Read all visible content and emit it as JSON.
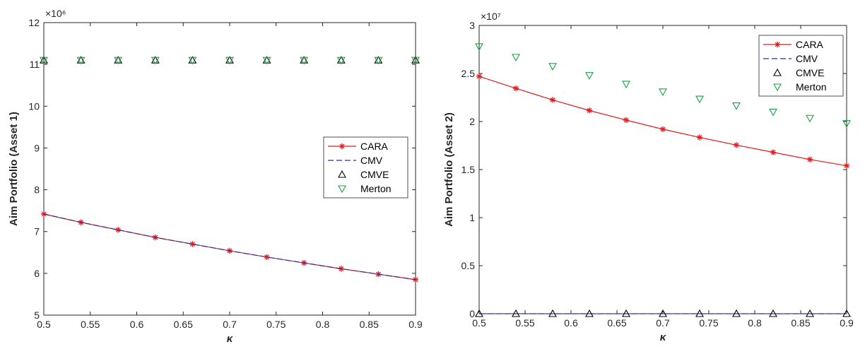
{
  "chart_data": [
    {
      "type": "line",
      "xlabel": "κ",
      "ylabel": "Aim Portfolio (Asset 1)",
      "exponent_label": "×10⁶",
      "xlim": [
        0.5,
        0.9
      ],
      "ylim": [
        5,
        12
      ],
      "xticks": [
        0.5,
        0.55,
        0.6,
        0.65,
        0.7,
        0.75,
        0.8,
        0.85,
        0.9
      ],
      "xtick_labels": [
        "0.5",
        "0.55",
        "0.6",
        "0.65",
        "0.7",
        "0.75",
        "0.8",
        "0.85",
        "0.9"
      ],
      "yticks": [
        5,
        6,
        7,
        8,
        9,
        10,
        11,
        12
      ],
      "ytick_labels": [
        "5",
        "6",
        "7",
        "8",
        "9",
        "10",
        "11",
        "12"
      ],
      "grid": false,
      "legend_position": "right",
      "x": [
        0.5,
        0.54,
        0.58,
        0.62,
        0.66,
        0.7,
        0.74,
        0.78,
        0.82,
        0.86,
        0.9
      ],
      "series": [
        {
          "name": "CARA",
          "style": "solid-line-star",
          "color": "#e41a1c",
          "values": [
            7.42,
            7.22,
            7.04,
            6.86,
            6.7,
            6.54,
            6.39,
            6.25,
            6.11,
            5.98,
            5.85
          ]
        },
        {
          "name": "CMV",
          "style": "dashed-line",
          "color": "#2c2ca0",
          "values": [
            7.42,
            7.22,
            7.04,
            6.86,
            6.7,
            6.54,
            6.39,
            6.25,
            6.11,
            5.98,
            5.85
          ]
        },
        {
          "name": "CMVE",
          "style": "triangle-up-marker",
          "color": "#000000",
          "values": [
            11.1,
            11.1,
            11.1,
            11.1,
            11.1,
            11.1,
            11.1,
            11.1,
            11.1,
            11.1,
            11.1
          ]
        },
        {
          "name": "Merton",
          "style": "triangle-down-marker",
          "color": "#1aa040",
          "values": [
            11.1,
            11.1,
            11.1,
            11.1,
            11.1,
            11.1,
            11.1,
            11.1,
            11.1,
            11.1,
            11.1
          ]
        }
      ]
    },
    {
      "type": "line",
      "xlabel": "κ",
      "ylabel": "Aim Portfolio (Asset 2)",
      "exponent_label": "×10⁷",
      "xlim": [
        0.5,
        0.9
      ],
      "ylim": [
        0,
        3
      ],
      "xticks": [
        0.5,
        0.55,
        0.6,
        0.65,
        0.7,
        0.75,
        0.8,
        0.85,
        0.9
      ],
      "xtick_labels": [
        "0.5",
        "0.55",
        "0.6",
        "0.65",
        "0.7",
        "0.75",
        "0.8",
        "0.85",
        "0.9"
      ],
      "yticks": [
        0,
        0.5,
        1,
        1.5,
        2,
        2.5,
        3
      ],
      "ytick_labels": [
        "0",
        "0.5",
        "1",
        "1.5",
        "2",
        "2.5",
        "3"
      ],
      "grid": false,
      "legend_position": "top-right",
      "x": [
        0.5,
        0.54,
        0.58,
        0.62,
        0.66,
        0.7,
        0.74,
        0.78,
        0.82,
        0.86,
        0.9
      ],
      "series": [
        {
          "name": "CARA",
          "style": "solid-line-star",
          "color": "#e41a1c",
          "values": [
            2.47,
            2.345,
            2.225,
            2.115,
            2.015,
            1.92,
            1.835,
            1.755,
            1.68,
            1.605,
            1.54
          ]
        },
        {
          "name": "CMV",
          "style": "dashed-line",
          "color": "#2c2ca0",
          "values": [
            0,
            0,
            0,
            0,
            0,
            0,
            0,
            0,
            0,
            0,
            0
          ]
        },
        {
          "name": "CMVE",
          "style": "triangle-up-marker",
          "color": "#000000",
          "values": [
            0,
            0,
            0,
            0,
            0,
            0,
            0,
            0,
            0,
            0,
            0
          ]
        },
        {
          "name": "Merton",
          "style": "triangle-down-marker",
          "color": "#1aa040",
          "values": [
            2.78,
            2.67,
            2.575,
            2.48,
            2.39,
            2.31,
            2.235,
            2.165,
            2.1,
            2.035,
            1.98
          ]
        }
      ]
    }
  ]
}
